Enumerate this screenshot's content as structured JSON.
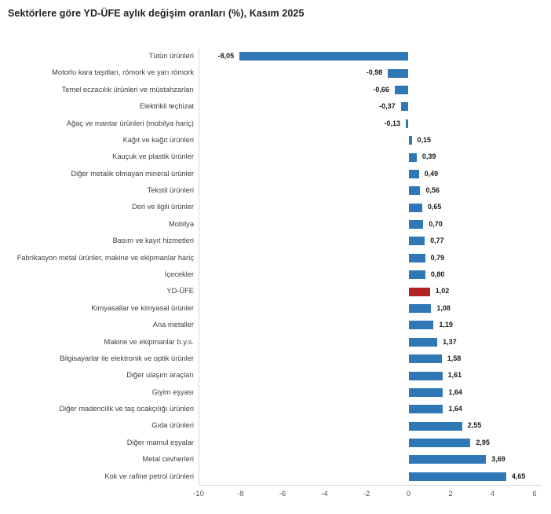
{
  "title": "Sektörlere göre YD-ÜFE aylık değişim oranları (%), Kasım 2025",
  "chart_data": {
    "type": "bar",
    "orientation": "horizontal",
    "title": "Sektörlere göre YD-ÜFE aylık değişim oranları (%), Kasım 2025",
    "xlabel": "",
    "ylabel": "",
    "xlim": [
      -10,
      6
    ],
    "x_ticks": [
      -10,
      -8,
      -6,
      -4,
      -2,
      0,
      2,
      4,
      6
    ],
    "grid": false,
    "legend": null,
    "bar_color": "#2F78B5",
    "highlight_color": "#B02025",
    "highlight_category": "YD-ÜFE",
    "highlight_index": 14,
    "categories": [
      "Tütün ürünleri",
      "Motorlu kara taşıtları, römork ve yarı römork",
      "Temel eczacılık ürünleri ve müstahzarları",
      "Elektrikli teçhizat",
      "Ağaç ve mantar ürünleri (mobilya hariç)",
      "Kağıt ve kağıt ürünleri",
      "Kauçuk ve plastik ürünler",
      "Diğer metalik olmayan mineral ürünler",
      "Tekstil ürünleri",
      "Deri ve ilgili ürünler",
      "Mobilya",
      "Basım ve kayıt hizmetleri",
      "Fabrikasyon metal ürünler, makine ve ekipmanlar hariç",
      "İçecekler",
      "YD-ÜFE",
      "Kimyasallar ve kimyasal ürünler",
      "Ana metaller",
      "Makine ve ekipmanlar b.y.s.",
      "Bilgisayarlar ile elektronik ve optik ürünler",
      "Diğer ulaşım araçları",
      "Giyim eşyası",
      "Diğer madencilik ve taş ocakçılığı ürünleri",
      "Gıda ürünleri",
      "Diğer mamul eşyalar",
      "Metal cevherleri",
      "Kok ve rafine petrol ürünleri"
    ],
    "values": [
      -8.05,
      -0.98,
      -0.66,
      -0.37,
      -0.13,
      0.15,
      0.39,
      0.49,
      0.56,
      0.65,
      0.7,
      0.77,
      0.79,
      0.8,
      1.02,
      1.08,
      1.19,
      1.37,
      1.58,
      1.61,
      1.64,
      1.64,
      2.55,
      2.95,
      3.69,
      4.65
    ],
    "value_labels": [
      "-8,05",
      "-0,98",
      "-0,66",
      "-0,37",
      "-0,13",
      "0,15",
      "0,39",
      "0,49",
      "0,56",
      "0,65",
      "0,70",
      "0,77",
      "0,79",
      "0,80",
      "1,02",
      "1,08",
      "1,19",
      "1,37",
      "1,58",
      "1,61",
      "1,64",
      "1,64",
      "2,55",
      "2,95",
      "3,69",
      "4,65"
    ]
  }
}
